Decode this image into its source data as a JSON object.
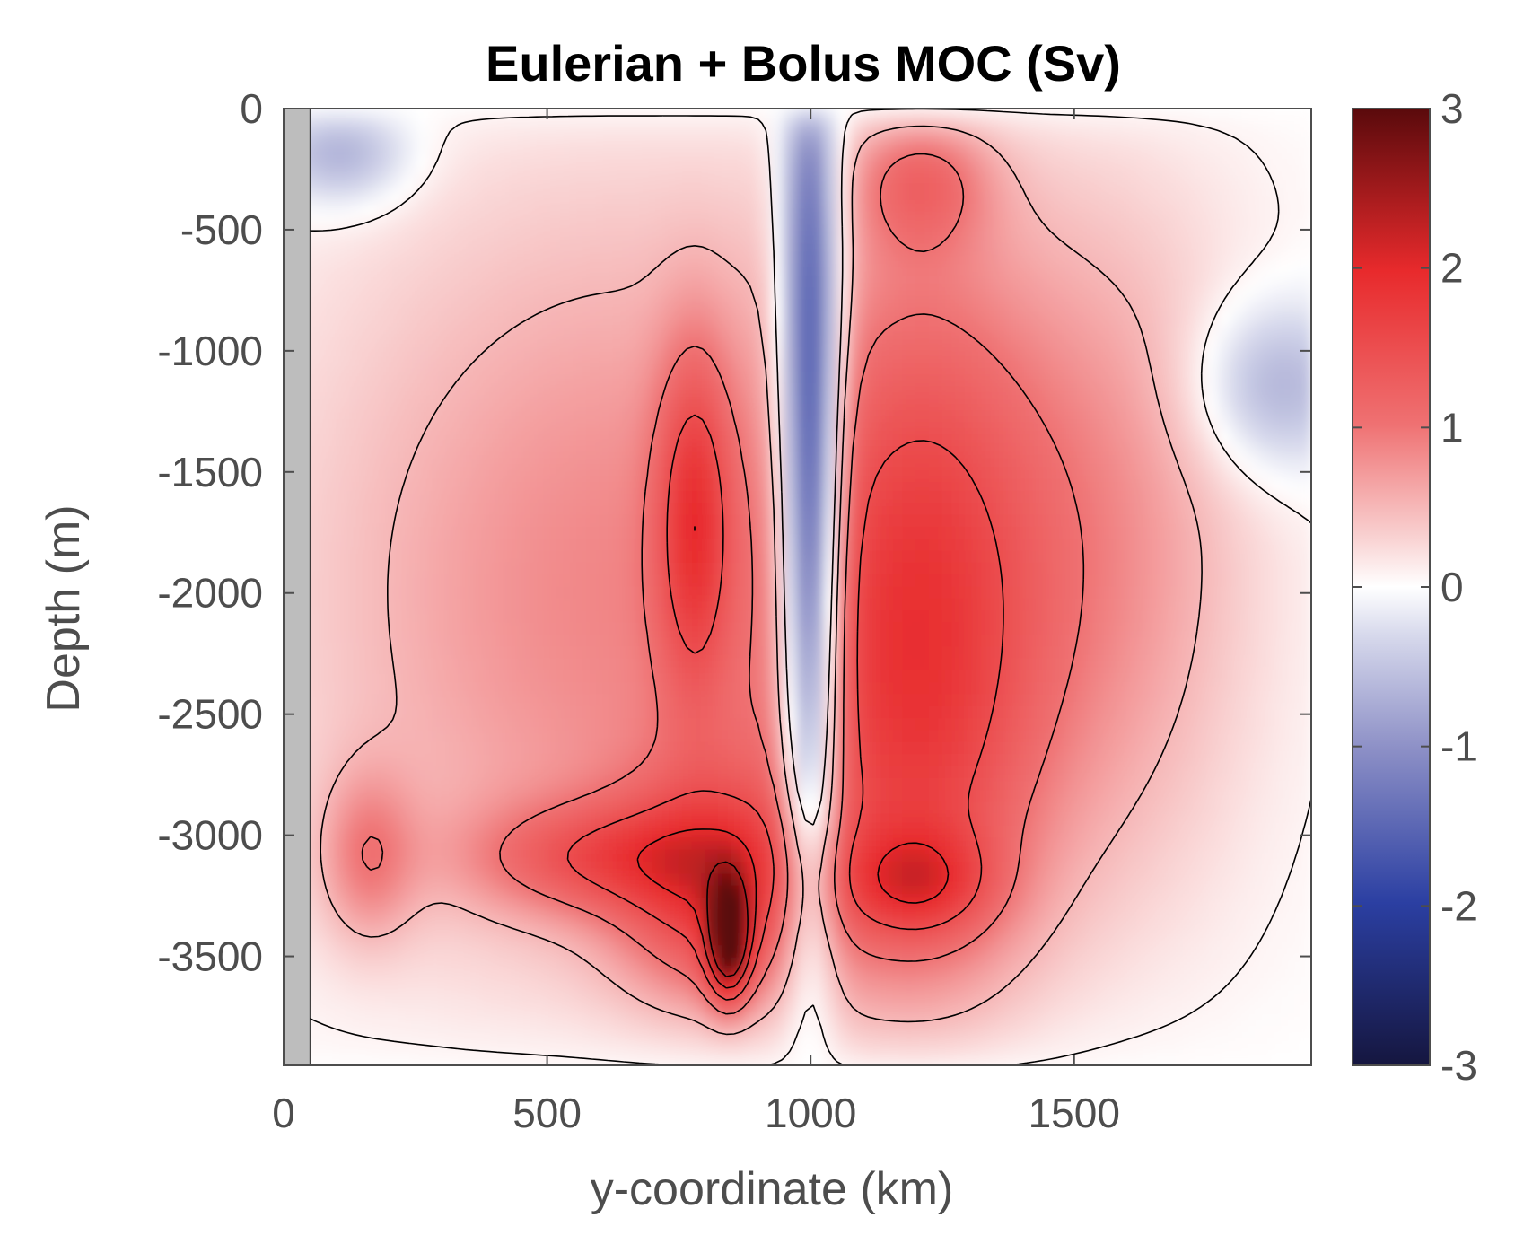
{
  "chart_data": {
    "type": "heatmap",
    "subtype": "filled-contour",
    "title": "Eulerian + Bolus MOC (Sv)",
    "xlabel": "y-coordinate (km)",
    "ylabel": "Depth (m)",
    "xlim": [
      0,
      1950
    ],
    "ylim": [
      -3950,
      0
    ],
    "x_ticks": [
      0,
      500,
      1000,
      1500
    ],
    "x_tick_labels": [
      "0",
      "500",
      "1000",
      "1500"
    ],
    "y_ticks": [
      0,
      -500,
      -1000,
      -1500,
      -2000,
      -2500,
      -3000,
      -3500
    ],
    "y_tick_labels": [
      "0",
      "-500",
      "-1000",
      "-1500",
      "-2000",
      "-2500",
      "-3000",
      "-3500"
    ],
    "colorbar": {
      "range": [
        -3,
        3
      ],
      "ticks": [
        3,
        2,
        1,
        0,
        -1,
        -2,
        -3
      ],
      "tick_labels": [
        "3",
        "2",
        "1",
        "0",
        "-1",
        "-2",
        "-3"
      ],
      "colormap": "blue-white-red diverging"
    },
    "contour_levels": [
      0,
      0.5,
      1,
      1.5,
      2,
      2.5
    ],
    "land_mask_x_km": [
      0,
      50
    ],
    "features": [
      {
        "name": "western-recirculation",
        "y_center_km": 120,
        "depth_center_m": -200,
        "value_sv": -0.3
      },
      {
        "name": "main-overturning-cell",
        "y_center_km": 840,
        "depth_center_m": -3400,
        "value_sv": 3.0
      },
      {
        "name": "western-deep-cell",
        "y_center_km": 160,
        "depth_center_m": -3100,
        "value_sv": 1.6
      },
      {
        "name": "central-counter-cell",
        "y_center_km": 1000,
        "depth_center_m": -1500,
        "value_sv": -0.2
      },
      {
        "name": "eastern-deep-cell",
        "y_center_km": 1200,
        "depth_center_m": -3200,
        "value_sv": 1.7
      },
      {
        "name": "eastern-upper-cell",
        "y_center_km": 1200,
        "depth_center_m": -250,
        "value_sv": 1.1
      },
      {
        "name": "far-east-negative-cell",
        "y_center_km": 1900,
        "depth_center_m": -1150,
        "value_sv": -0.2
      }
    ]
  },
  "colors": {
    "land": "#bdbdbd",
    "positive_max": "#5a0a0c",
    "negative_max": "#15163f",
    "axis": "#4d4d4d"
  }
}
